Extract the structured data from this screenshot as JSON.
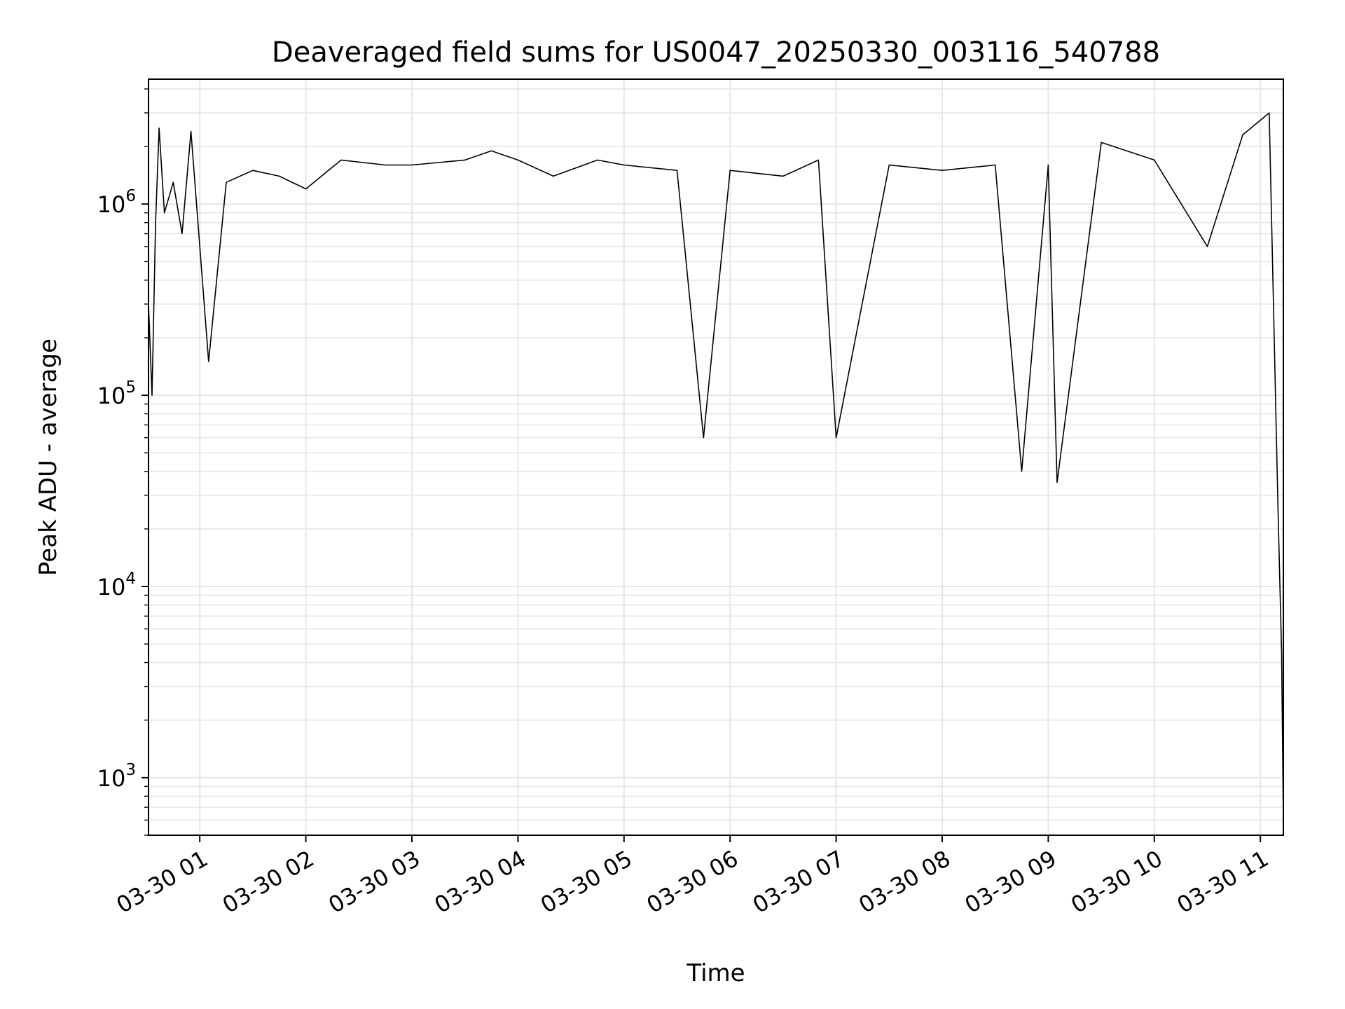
{
  "chart_data": {
    "type": "line",
    "title": "Deaveraged field sums for US0047_20250330_003116_540788",
    "xlabel": "Time",
    "ylabel": "Peak ADU - average",
    "y_scale": "log",
    "ylim": [
      500,
      4500000
    ],
    "xlim": [
      "2025-03-30 00:31",
      "2025-03-30 11:13"
    ],
    "x_ticks": [
      {
        "value": "2025-03-30 01:00",
        "label": "03-30 01"
      },
      {
        "value": "2025-03-30 02:00",
        "label": "03-30 02"
      },
      {
        "value": "2025-03-30 03:00",
        "label": "03-30 03"
      },
      {
        "value": "2025-03-30 04:00",
        "label": "03-30 04"
      },
      {
        "value": "2025-03-30 05:00",
        "label": "03-30 05"
      },
      {
        "value": "2025-03-30 06:00",
        "label": "03-30 06"
      },
      {
        "value": "2025-03-30 07:00",
        "label": "03-30 07"
      },
      {
        "value": "2025-03-30 08:00",
        "label": "03-30 08"
      },
      {
        "value": "2025-03-30 09:00",
        "label": "03-30 09"
      },
      {
        "value": "2025-03-30 10:00",
        "label": "03-30 10"
      },
      {
        "value": "2025-03-30 11:00",
        "label": "03-30 11"
      }
    ],
    "y_ticks": [
      {
        "value": 1000,
        "base": "10",
        "exp": "3"
      },
      {
        "value": 10000,
        "base": "10",
        "exp": "4"
      },
      {
        "value": 100000,
        "base": "10",
        "exp": "5"
      },
      {
        "value": 1000000,
        "base": "10",
        "exp": "6"
      }
    ],
    "grid": true,
    "line_color": "#000000",
    "grid_color": "#e6e6e6",
    "series": [
      {
        "points": [
          [
            "2025-03-30 00:31",
            300000
          ],
          [
            "2025-03-30 00:33",
            100000
          ],
          [
            "2025-03-30 00:35",
            800000
          ],
          [
            "2025-03-30 00:37",
            2500000
          ],
          [
            "2025-03-30 00:40",
            900000
          ],
          [
            "2025-03-30 00:45",
            1300000
          ],
          [
            "2025-03-30 00:50",
            700000
          ],
          [
            "2025-03-30 00:55",
            2400000
          ],
          [
            "2025-03-30 01:00",
            600000
          ],
          [
            "2025-03-30 01:05",
            150000
          ],
          [
            "2025-03-30 01:15",
            1300000
          ],
          [
            "2025-03-30 01:30",
            1500000
          ],
          [
            "2025-03-30 01:45",
            1400000
          ],
          [
            "2025-03-30 02:00",
            1200000
          ],
          [
            "2025-03-30 02:20",
            1700000
          ],
          [
            "2025-03-30 02:45",
            1600000
          ],
          [
            "2025-03-30 03:00",
            1600000
          ],
          [
            "2025-03-30 03:30",
            1700000
          ],
          [
            "2025-03-30 03:45",
            1900000
          ],
          [
            "2025-03-30 04:00",
            1700000
          ],
          [
            "2025-03-30 04:20",
            1400000
          ],
          [
            "2025-03-30 04:45",
            1700000
          ],
          [
            "2025-03-30 05:00",
            1600000
          ],
          [
            "2025-03-30 05:30",
            1500000
          ],
          [
            "2025-03-30 05:45",
            60000
          ],
          [
            "2025-03-30 06:00",
            1500000
          ],
          [
            "2025-03-30 06:30",
            1400000
          ],
          [
            "2025-03-30 06:50",
            1700000
          ],
          [
            "2025-03-30 07:00",
            60000
          ],
          [
            "2025-03-30 07:30",
            1600000
          ],
          [
            "2025-03-30 08:00",
            1500000
          ],
          [
            "2025-03-30 08:30",
            1600000
          ],
          [
            "2025-03-30 08:45",
            40000
          ],
          [
            "2025-03-30 09:00",
            1600000
          ],
          [
            "2025-03-30 09:05",
            35000
          ],
          [
            "2025-03-30 09:30",
            2100000
          ],
          [
            "2025-03-30 10:00",
            1700000
          ],
          [
            "2025-03-30 10:30",
            600000
          ],
          [
            "2025-03-30 10:50",
            2300000
          ],
          [
            "2025-03-30 11:05",
            3000000
          ],
          [
            "2025-03-30 11:10",
            25000
          ],
          [
            "2025-03-30 11:12",
            4500
          ],
          [
            "2025-03-30 11:13",
            600
          ]
        ]
      }
    ]
  }
}
